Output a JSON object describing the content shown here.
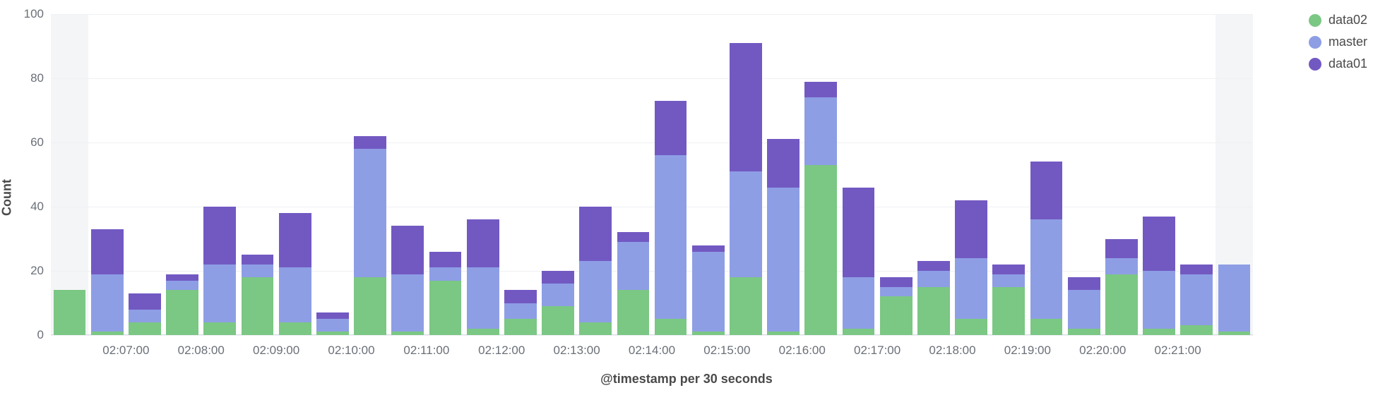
{
  "chart": {
    "type": "stacked-bar",
    "ylabel": "Count",
    "xlabel": "@timestamp per 30 seconds",
    "ylim": [
      0,
      100
    ],
    "ytick_step": 20,
    "yticks": [
      0,
      20,
      40,
      60,
      80,
      100
    ],
    "background_color": "#ffffff",
    "grid_color": "#eef0f3",
    "axis_text_color": "#6a6f77",
    "label_text_color": "#4a4a4a",
    "label_fontsize": 18,
    "tick_fontsize": 17,
    "bar_width_ratio": 0.86,
    "boundary_fill_color": "#f4f5f7",
    "series": [
      {
        "key": "data02",
        "label": "data02",
        "color": "#7bc784"
      },
      {
        "key": "master",
        "label": "master",
        "color": "#8e9ee5"
      },
      {
        "key": "data01",
        "label": "data01",
        "color": "#7259c2"
      }
    ],
    "bars": [
      {
        "data02": 14,
        "master": 0,
        "data01": 0,
        "boundary": true
      },
      {
        "data02": 1,
        "master": 18,
        "data01": 14
      },
      {
        "data02": 4,
        "master": 4,
        "data01": 5
      },
      {
        "data02": 14,
        "master": 3,
        "data01": 2
      },
      {
        "data02": 4,
        "master": 18,
        "data01": 18
      },
      {
        "data02": 18,
        "master": 4,
        "data01": 3
      },
      {
        "data02": 4,
        "master": 17,
        "data01": 17
      },
      {
        "data02": 1,
        "master": 4,
        "data01": 2
      },
      {
        "data02": 18,
        "master": 40,
        "data01": 4
      },
      {
        "data02": 1,
        "master": 18,
        "data01": 15
      },
      {
        "data02": 17,
        "master": 4,
        "data01": 5
      },
      {
        "data02": 2,
        "master": 19,
        "data01": 15
      },
      {
        "data02": 5,
        "master": 5,
        "data01": 4
      },
      {
        "data02": 9,
        "master": 7,
        "data01": 4
      },
      {
        "data02": 4,
        "master": 19,
        "data01": 17
      },
      {
        "data02": 14,
        "master": 15,
        "data01": 3
      },
      {
        "data02": 5,
        "master": 51,
        "data01": 17
      },
      {
        "data02": 1,
        "master": 25,
        "data01": 2
      },
      {
        "data02": 18,
        "master": 33,
        "data01": 40
      },
      {
        "data02": 1,
        "master": 45,
        "data01": 15
      },
      {
        "data02": 53,
        "master": 21,
        "data01": 5
      },
      {
        "data02": 2,
        "master": 16,
        "data01": 28
      },
      {
        "data02": 12,
        "master": 3,
        "data01": 3
      },
      {
        "data02": 15,
        "master": 5,
        "data01": 3
      },
      {
        "data02": 5,
        "master": 19,
        "data01": 18
      },
      {
        "data02": 15,
        "master": 4,
        "data01": 3
      },
      {
        "data02": 5,
        "master": 31,
        "data01": 18
      },
      {
        "data02": 2,
        "master": 12,
        "data01": 4
      },
      {
        "data02": 19,
        "master": 5,
        "data01": 6
      },
      {
        "data02": 2,
        "master": 18,
        "data01": 17
      },
      {
        "data02": 3,
        "master": 16,
        "data01": 3
      },
      {
        "data02": 1,
        "master": 21,
        "data01": 0,
        "boundary": true
      }
    ],
    "xticks": [
      {
        "label": "02:07:00",
        "index": 1.5
      },
      {
        "label": "02:08:00",
        "index": 3.5
      },
      {
        "label": "02:09:00",
        "index": 5.5
      },
      {
        "label": "02:10:00",
        "index": 7.5
      },
      {
        "label": "02:11:00",
        "index": 9.5
      },
      {
        "label": "02:12:00",
        "index": 11.5
      },
      {
        "label": "02:13:00",
        "index": 13.5
      },
      {
        "label": "02:14:00",
        "index": 15.5
      },
      {
        "label": "02:15:00",
        "index": 17.5
      },
      {
        "label": "02:16:00",
        "index": 19.5
      },
      {
        "label": "02:17:00",
        "index": 21.5
      },
      {
        "label": "02:18:00",
        "index": 23.5
      },
      {
        "label": "02:19:00",
        "index": 25.5
      },
      {
        "label": "02:20:00",
        "index": 27.5
      },
      {
        "label": "02:21:00",
        "index": 29.5
      }
    ]
  }
}
